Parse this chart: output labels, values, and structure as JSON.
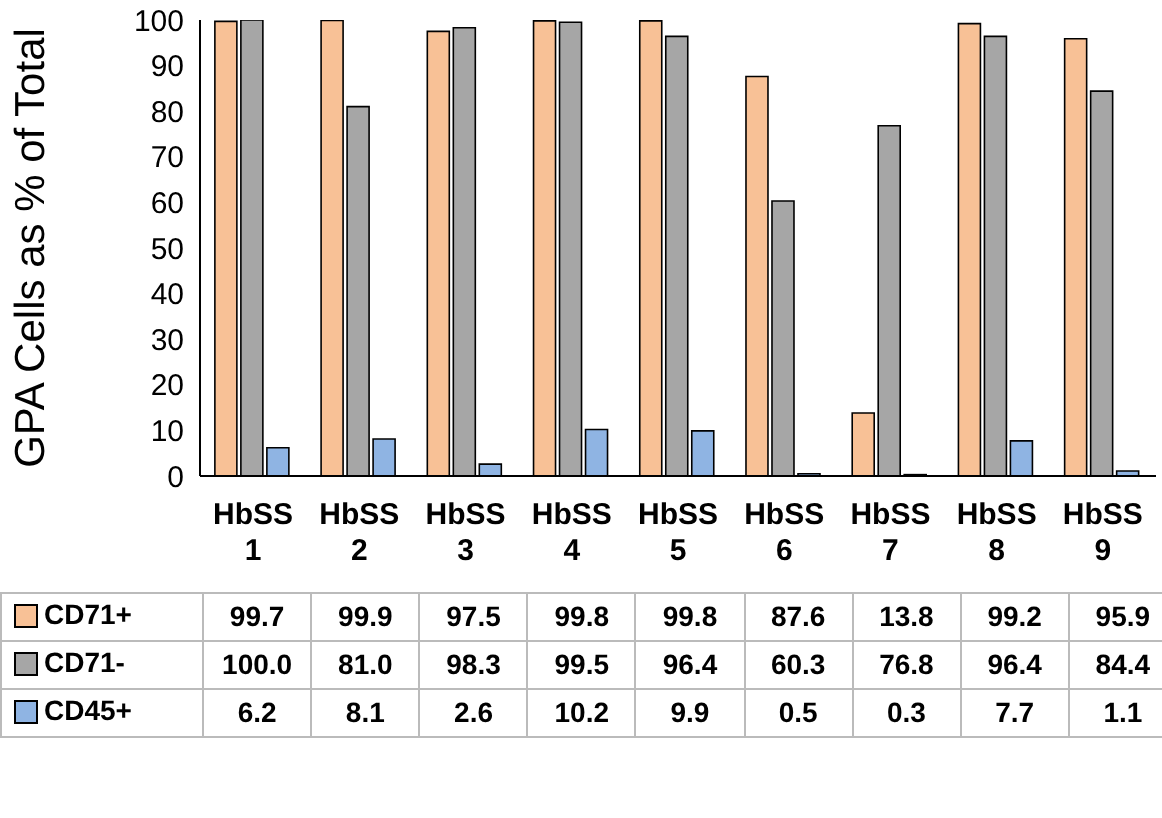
{
  "chart_data": {
    "type": "bar",
    "ylabel": "GPA Cells as % of Total",
    "categories": [
      "HbSS 1",
      "HbSS 2",
      "HbSS 3",
      "HbSS 4",
      "HbSS 5",
      "HbSS 6",
      "HbSS 7",
      "HbSS 8",
      "HbSS 9"
    ],
    "series": [
      {
        "name": "CD71+",
        "color": "#f8c196",
        "values": [
          99.7,
          99.9,
          97.5,
          99.8,
          99.8,
          87.6,
          13.8,
          99.2,
          95.9
        ],
        "value_labels": [
          "99.7",
          "99.9",
          "97.5",
          "99.8",
          "99.8",
          "87.6",
          "13.8",
          "99.2",
          "95.9"
        ]
      },
      {
        "name": "CD71-",
        "color": "#a6a6a6",
        "values": [
          100.0,
          81.0,
          98.3,
          99.5,
          96.4,
          60.3,
          76.8,
          96.4,
          84.4
        ],
        "value_labels": [
          "100.0",
          "81.0",
          "98.3",
          "99.5",
          "96.4",
          "60.3",
          "76.8",
          "96.4",
          "84.4"
        ]
      },
      {
        "name": "CD45+",
        "color": "#8fb4e3",
        "values": [
          6.2,
          8.1,
          2.6,
          10.2,
          9.9,
          0.5,
          0.3,
          7.7,
          1.1
        ],
        "value_labels": [
          "6.2",
          "8.1",
          "2.6",
          "10.2",
          "9.9",
          "0.5",
          "0.3",
          "7.7",
          "1.1"
        ]
      }
    ],
    "ylim": [
      0,
      100
    ],
    "yticks": [
      0,
      10,
      20,
      30,
      40,
      50,
      60,
      70,
      80,
      90,
      100
    ],
    "legend": "bottom"
  }
}
